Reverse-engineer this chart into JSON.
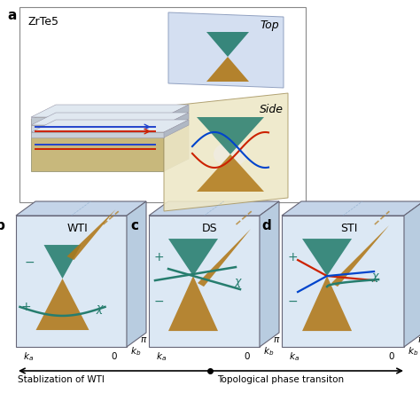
{
  "panel_a_label": "a",
  "panel_b_label": "b",
  "panel_c_label": "c",
  "panel_d_label": "d",
  "panel_a_title": "ZrTe5",
  "panel_b_title": "WTI",
  "panel_c_title": "DS",
  "panel_d_title": "STI",
  "top_label": "Top",
  "side_label": "Side",
  "bottom_left": "Stablization of WTI",
  "bottom_right": "Topological phase transiton",
  "teal": "#267d6e",
  "gold": "#b07818",
  "gold_dark": "#8a5c05",
  "box_face": "#dce8f4",
  "box_top": "#c8d8ec",
  "box_side": "#b8cce0",
  "layer_tan": "#c8b87c",
  "layer_light": "#d8c890",
  "layer_gray": "#b0b8c0",
  "top_surf": "#c8d8f0",
  "side_surf": "#e8e0c0",
  "line_blue": "#0044cc",
  "line_red": "#cc2200",
  "teal_sign": "#267d6e",
  "arrow_color": "#222222"
}
